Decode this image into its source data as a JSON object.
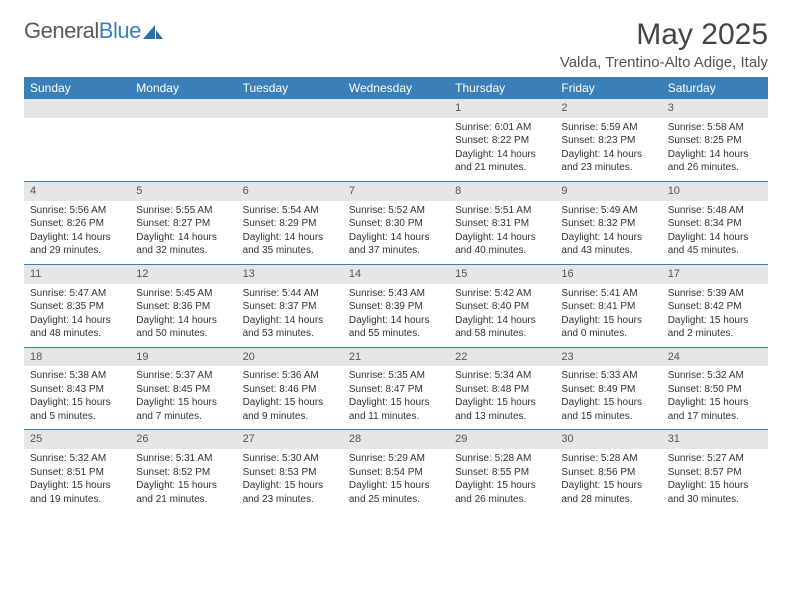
{
  "logo": {
    "word1": "General",
    "word2": "Blue"
  },
  "title": "May 2025",
  "subtitle": "Valda, Trentino-Alto Adige, Italy",
  "colors": {
    "header_bg": "#3b7fb8",
    "header_text": "#ffffff",
    "daynum_bg": "#e6e6e6",
    "text": "#333333",
    "rule": "#3b7fb8"
  },
  "day_headers": [
    "Sunday",
    "Monday",
    "Tuesday",
    "Wednesday",
    "Thursday",
    "Friday",
    "Saturday"
  ],
  "weeks": [
    [
      {
        "empty": true
      },
      {
        "empty": true
      },
      {
        "empty": true
      },
      {
        "empty": true
      },
      {
        "n": "1",
        "sunrise": "Sunrise: 6:01 AM",
        "sunset": "Sunset: 8:22 PM",
        "d1": "Daylight: 14 hours",
        "d2": "and 21 minutes."
      },
      {
        "n": "2",
        "sunrise": "Sunrise: 5:59 AM",
        "sunset": "Sunset: 8:23 PM",
        "d1": "Daylight: 14 hours",
        "d2": "and 23 minutes."
      },
      {
        "n": "3",
        "sunrise": "Sunrise: 5:58 AM",
        "sunset": "Sunset: 8:25 PM",
        "d1": "Daylight: 14 hours",
        "d2": "and 26 minutes."
      }
    ],
    [
      {
        "n": "4",
        "sunrise": "Sunrise: 5:56 AM",
        "sunset": "Sunset: 8:26 PM",
        "d1": "Daylight: 14 hours",
        "d2": "and 29 minutes."
      },
      {
        "n": "5",
        "sunrise": "Sunrise: 5:55 AM",
        "sunset": "Sunset: 8:27 PM",
        "d1": "Daylight: 14 hours",
        "d2": "and 32 minutes."
      },
      {
        "n": "6",
        "sunrise": "Sunrise: 5:54 AM",
        "sunset": "Sunset: 8:29 PM",
        "d1": "Daylight: 14 hours",
        "d2": "and 35 minutes."
      },
      {
        "n": "7",
        "sunrise": "Sunrise: 5:52 AM",
        "sunset": "Sunset: 8:30 PM",
        "d1": "Daylight: 14 hours",
        "d2": "and 37 minutes."
      },
      {
        "n": "8",
        "sunrise": "Sunrise: 5:51 AM",
        "sunset": "Sunset: 8:31 PM",
        "d1": "Daylight: 14 hours",
        "d2": "and 40 minutes."
      },
      {
        "n": "9",
        "sunrise": "Sunrise: 5:49 AM",
        "sunset": "Sunset: 8:32 PM",
        "d1": "Daylight: 14 hours",
        "d2": "and 43 minutes."
      },
      {
        "n": "10",
        "sunrise": "Sunrise: 5:48 AM",
        "sunset": "Sunset: 8:34 PM",
        "d1": "Daylight: 14 hours",
        "d2": "and 45 minutes."
      }
    ],
    [
      {
        "n": "11",
        "sunrise": "Sunrise: 5:47 AM",
        "sunset": "Sunset: 8:35 PM",
        "d1": "Daylight: 14 hours",
        "d2": "and 48 minutes."
      },
      {
        "n": "12",
        "sunrise": "Sunrise: 5:45 AM",
        "sunset": "Sunset: 8:36 PM",
        "d1": "Daylight: 14 hours",
        "d2": "and 50 minutes."
      },
      {
        "n": "13",
        "sunrise": "Sunrise: 5:44 AM",
        "sunset": "Sunset: 8:37 PM",
        "d1": "Daylight: 14 hours",
        "d2": "and 53 minutes."
      },
      {
        "n": "14",
        "sunrise": "Sunrise: 5:43 AM",
        "sunset": "Sunset: 8:39 PM",
        "d1": "Daylight: 14 hours",
        "d2": "and 55 minutes."
      },
      {
        "n": "15",
        "sunrise": "Sunrise: 5:42 AM",
        "sunset": "Sunset: 8:40 PM",
        "d1": "Daylight: 14 hours",
        "d2": "and 58 minutes."
      },
      {
        "n": "16",
        "sunrise": "Sunrise: 5:41 AM",
        "sunset": "Sunset: 8:41 PM",
        "d1": "Daylight: 15 hours",
        "d2": "and 0 minutes."
      },
      {
        "n": "17",
        "sunrise": "Sunrise: 5:39 AM",
        "sunset": "Sunset: 8:42 PM",
        "d1": "Daylight: 15 hours",
        "d2": "and 2 minutes."
      }
    ],
    [
      {
        "n": "18",
        "sunrise": "Sunrise: 5:38 AM",
        "sunset": "Sunset: 8:43 PM",
        "d1": "Daylight: 15 hours",
        "d2": "and 5 minutes."
      },
      {
        "n": "19",
        "sunrise": "Sunrise: 5:37 AM",
        "sunset": "Sunset: 8:45 PM",
        "d1": "Daylight: 15 hours",
        "d2": "and 7 minutes."
      },
      {
        "n": "20",
        "sunrise": "Sunrise: 5:36 AM",
        "sunset": "Sunset: 8:46 PM",
        "d1": "Daylight: 15 hours",
        "d2": "and 9 minutes."
      },
      {
        "n": "21",
        "sunrise": "Sunrise: 5:35 AM",
        "sunset": "Sunset: 8:47 PM",
        "d1": "Daylight: 15 hours",
        "d2": "and 11 minutes."
      },
      {
        "n": "22",
        "sunrise": "Sunrise: 5:34 AM",
        "sunset": "Sunset: 8:48 PM",
        "d1": "Daylight: 15 hours",
        "d2": "and 13 minutes."
      },
      {
        "n": "23",
        "sunrise": "Sunrise: 5:33 AM",
        "sunset": "Sunset: 8:49 PM",
        "d1": "Daylight: 15 hours",
        "d2": "and 15 minutes."
      },
      {
        "n": "24",
        "sunrise": "Sunrise: 5:32 AM",
        "sunset": "Sunset: 8:50 PM",
        "d1": "Daylight: 15 hours",
        "d2": "and 17 minutes."
      }
    ],
    [
      {
        "n": "25",
        "sunrise": "Sunrise: 5:32 AM",
        "sunset": "Sunset: 8:51 PM",
        "d1": "Daylight: 15 hours",
        "d2": "and 19 minutes."
      },
      {
        "n": "26",
        "sunrise": "Sunrise: 5:31 AM",
        "sunset": "Sunset: 8:52 PM",
        "d1": "Daylight: 15 hours",
        "d2": "and 21 minutes."
      },
      {
        "n": "27",
        "sunrise": "Sunrise: 5:30 AM",
        "sunset": "Sunset: 8:53 PM",
        "d1": "Daylight: 15 hours",
        "d2": "and 23 minutes."
      },
      {
        "n": "28",
        "sunrise": "Sunrise: 5:29 AM",
        "sunset": "Sunset: 8:54 PM",
        "d1": "Daylight: 15 hours",
        "d2": "and 25 minutes."
      },
      {
        "n": "29",
        "sunrise": "Sunrise: 5:28 AM",
        "sunset": "Sunset: 8:55 PM",
        "d1": "Daylight: 15 hours",
        "d2": "and 26 minutes."
      },
      {
        "n": "30",
        "sunrise": "Sunrise: 5:28 AM",
        "sunset": "Sunset: 8:56 PM",
        "d1": "Daylight: 15 hours",
        "d2": "and 28 minutes."
      },
      {
        "n": "31",
        "sunrise": "Sunrise: 5:27 AM",
        "sunset": "Sunset: 8:57 PM",
        "d1": "Daylight: 15 hours",
        "d2": "and 30 minutes."
      }
    ]
  ]
}
